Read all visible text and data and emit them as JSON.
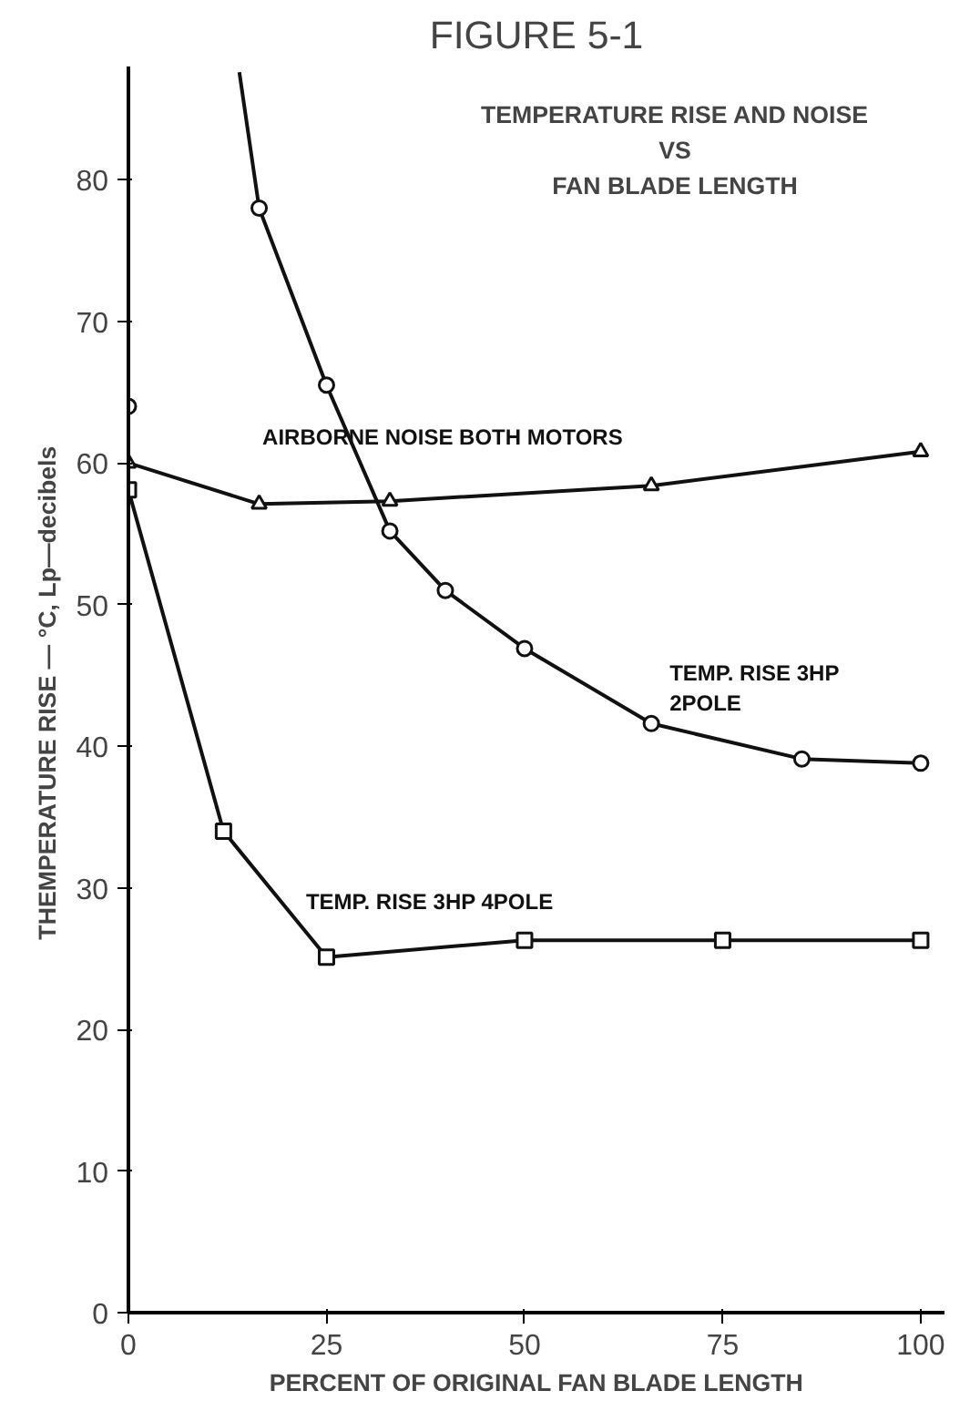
{
  "chart_data": {
    "type": "line",
    "title": "FIGURE 5-1",
    "subtitle": "TEMPERATURE RISE AND NOISE\nVS\nFAN BLADE LENGTH",
    "xlabel": "PERCENT OF ORIGINAL FAN BLADE LENGTH",
    "ylabel": "THEMPERATURE RISE — °C,  Lp—decibels",
    "xlim": [
      0,
      103
    ],
    "ylim": [
      0,
      88
    ],
    "xticks": [
      0,
      25,
      50,
      75,
      100
    ],
    "yticks": [
      0,
      10,
      20,
      30,
      40,
      50,
      60,
      70,
      80
    ],
    "grid": false,
    "series": [
      {
        "name": "AIRBORNE NOISE  BOTH MOTORS",
        "color": "#111111",
        "marker": "triangle",
        "x": [
          0,
          16.5,
          33,
          66,
          100
        ],
        "values": [
          60,
          57.1,
          57.3,
          58.4,
          60.8
        ]
      },
      {
        "name": "TEMP. RISE 3HP 2POLE",
        "color": "#111111",
        "marker": "circle",
        "x": [
          0,
          7,
          14,
          16.5,
          25,
          33,
          40,
          50,
          66,
          85,
          100
        ],
        "values": [
          64,
          null,
          87.6,
          78,
          65.5,
          55.2,
          51,
          46.9,
          41.6,
          39.1,
          38.8
        ]
      },
      {
        "name": "TEMP. RISE 3HP 4POLE",
        "color": "#111111",
        "marker": "square",
        "x": [
          0,
          12,
          25,
          50,
          75,
          100
        ],
        "values": [
          58.1,
          34,
          25.1,
          26.3,
          26.3,
          26.3
        ]
      }
    ]
  }
}
